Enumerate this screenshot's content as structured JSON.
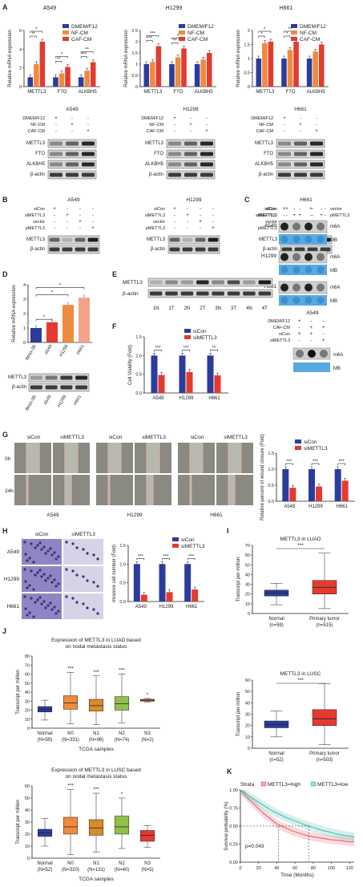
{
  "colors": {
    "blue": "#2b3c9e",
    "orange": "#f08a3c",
    "red": "#e43a2f",
    "green": "#8fc04a",
    "salmon": "#f2a38a",
    "teal": "#3cb8a8",
    "pink": "#e8566a",
    "mb": "#58a9df",
    "ink": "#222222"
  },
  "panels": {
    "A": "A",
    "B": "B",
    "C": "C",
    "D": "D",
    "E": "E",
    "F": "F",
    "G": "G",
    "H": "H",
    "I": "I",
    "J": "J",
    "K": "K"
  },
  "cell_lines": [
    "A549",
    "H1299",
    "H661"
  ],
  "genes": [
    "METTL3",
    "FTO",
    "ALKBH5"
  ],
  "bactin": "β-actin",
  "chart_data": [
    {
      "id": "A549",
      "type": "bar",
      "title": "A549",
      "ylabel": "Relative mRNA expression",
      "ylim": [
        0,
        6
      ],
      "yticks": [
        0,
        2,
        4,
        6
      ],
      "categories": [
        "METTL3",
        "FTO",
        "ALKBH5"
      ],
      "series": [
        {
          "name": "DMEM/F12",
          "values": [
            1.0,
            1.0,
            1.0
          ]
        },
        {
          "name": "NF-CM",
          "values": [
            2.4,
            1.4,
            1.7
          ]
        },
        {
          "name": "CAF-CM",
          "values": [
            4.8,
            2.1,
            2.6
          ]
        }
      ],
      "legend": [
        "DMEM/F12",
        "NF-CM",
        "CAF-CM"
      ],
      "sig_labels": [
        "**",
        "*",
        "**",
        "*",
        "***",
        "**",
        "**"
      ]
    },
    {
      "id": "H1299",
      "type": "bar",
      "title": "H1299",
      "ylabel": "Relative mRNA expression",
      "ylim": [
        0,
        2.5
      ],
      "yticks": [
        0.0,
        0.5,
        1.0,
        1.5,
        2.0,
        2.5
      ],
      "categories": [
        "METTL3",
        "FTO",
        "ALKBH5"
      ],
      "series": [
        {
          "name": "DMEM/F12",
          "values": [
            1.0,
            1.0,
            1.0
          ]
        },
        {
          "name": "NF-CM",
          "values": [
            1.1,
            1.3,
            1.2
          ]
        },
        {
          "name": "CAF-CM",
          "values": [
            1.8,
            1.7,
            1.5
          ]
        }
      ],
      "legend": [
        "DMEM/F12",
        "NF-CM",
        "CAF-CM"
      ],
      "sig_labels": [
        "***",
        "***",
        "**",
        "*"
      ]
    },
    {
      "id": "H661",
      "type": "bar",
      "title": "H661",
      "ylabel": "Relative mRNA expression",
      "ylim": [
        0,
        2.0
      ],
      "yticks": [
        0.0,
        0.5,
        1.0,
        1.5,
        2.0
      ],
      "categories": [
        "METTL3",
        "FTO",
        "ALKBH5"
      ],
      "series": [
        {
          "name": "DMEM/F12",
          "values": [
            1.0,
            1.0,
            1.0
          ]
        },
        {
          "name": "NF-CM",
          "values": [
            1.55,
            1.3,
            1.25
          ]
        },
        {
          "name": "CAF-CM",
          "values": [
            1.6,
            1.6,
            1.5
          ]
        }
      ],
      "legend": [
        "DMEM/F12",
        "NF-CM",
        "CAF-CM"
      ],
      "sig_labels": [
        "*",
        "*",
        "*",
        "**"
      ]
    },
    {
      "id": "D",
      "type": "bar",
      "ylabel": "Relative mRNA expression",
      "ylim": [
        0,
        4
      ],
      "yticks": [
        0,
        1,
        2,
        3,
        4
      ],
      "categories": [
        "Beas-2B",
        "A549",
        "H1299",
        "H661"
      ],
      "values": [
        1.0,
        1.4,
        2.6,
        3.1
      ],
      "bar_colors": [
        "#2b3c9e",
        "#e43a2f",
        "#f08a3c",
        "#f2a38a"
      ],
      "sig_labels": [
        "*",
        "*",
        "*"
      ]
    },
    {
      "id": "F",
      "type": "bar",
      "ylabel": "Cell Viability (Fold)",
      "ylim": [
        0,
        1.5
      ],
      "yticks": [
        0.0,
        0.5,
        1.0,
        1.5
      ],
      "categories": [
        "A549",
        "H1299",
        "H661"
      ],
      "series": [
        {
          "name": "siCon",
          "values": [
            1.0,
            1.0,
            1.0
          ]
        },
        {
          "name": "siMETTL3",
          "values": [
            0.48,
            0.56,
            0.47
          ]
        }
      ],
      "legend": [
        "siCon",
        "siMETTL3"
      ],
      "sig_labels": [
        "***",
        "***",
        "**"
      ]
    },
    {
      "id": "G",
      "type": "bar",
      "ylabel": "Relative percent of wound closure (Fold)",
      "ylim": [
        0,
        1.5
      ],
      "yticks": [
        0.0,
        0.5,
        1.0,
        1.5
      ],
      "categories": [
        "A549",
        "H1299",
        "H661"
      ],
      "series": [
        {
          "name": "siCon",
          "values": [
            1.0,
            1.0,
            1.0
          ]
        },
        {
          "name": "siMETTL3",
          "values": [
            0.42,
            0.46,
            0.64
          ]
        }
      ],
      "legend": [
        "siCon",
        "siMETTL3"
      ],
      "sig_labels": [
        "***",
        "***",
        "***"
      ]
    },
    {
      "id": "H",
      "type": "bar",
      "ylabel": "Invasive cell number (Fold)",
      "ylim": [
        0,
        1.5
      ],
      "yticks": [
        0.0,
        0.5,
        1.0,
        1.5
      ],
      "categories": [
        "A549",
        "H1299",
        "H661"
      ],
      "series": [
        {
          "name": "siCon",
          "values": [
            1.0,
            1.0,
            1.0
          ]
        },
        {
          "name": "siMETTL3",
          "values": [
            0.18,
            0.25,
            0.32
          ]
        }
      ],
      "legend": [
        "siCon",
        "siMETTL3"
      ],
      "sig_labels": [
        "***",
        "***",
        "***"
      ]
    },
    {
      "id": "I1",
      "type": "box",
      "title": "METTL3 in LUAD",
      "ylabel": "Transcript per million",
      "ylim": [
        0,
        70
      ],
      "yticks": [
        0,
        10,
        20,
        30,
        40,
        50,
        60,
        70
      ],
      "categories": [
        "Normal\n(n=59)",
        "Primary tumor\n(n=515)"
      ],
      "boxes": [
        {
          "min": 9,
          "q1": 18,
          "median": 21,
          "q3": 24,
          "max": 31,
          "color": "#2b3c9e"
        },
        {
          "min": 5,
          "q1": 20,
          "median": 27,
          "q3": 34,
          "max": 62,
          "color": "#e43a2f"
        }
      ],
      "sig_labels": [
        "***"
      ]
    },
    {
      "id": "I2",
      "type": "box",
      "title": "METTL3 in LUSC",
      "ylabel": "Transcript per million",
      "ylim": [
        0,
        60
      ],
      "yticks": [
        0,
        10,
        20,
        30,
        40,
        50,
        60
      ],
      "categories": [
        "Normal\n(n=52)",
        "Primary tumor\n(n=503)"
      ],
      "boxes": [
        {
          "min": 10,
          "q1": 18,
          "median": 21,
          "q3": 24,
          "max": 33,
          "color": "#2b3c9e"
        },
        {
          "min": 3,
          "q1": 20,
          "median": 26,
          "q3": 34,
          "max": 57,
          "color": "#e43a2f"
        }
      ],
      "sig_labels": [
        "***"
      ]
    },
    {
      "id": "J1",
      "type": "box",
      "title": "Expression of METTL3 in LUAD based on nodal metastasis status",
      "ylabel": "Transcript per million",
      "xlabel": "TCGA samples",
      "ylim": [
        0,
        80
      ],
      "yticks": [
        0,
        10,
        20,
        30,
        40,
        50,
        60,
        70,
        80
      ],
      "categories": [
        "Normal\n(N=59)",
        "N0\n(N=331)",
        "N1\n(N=96)",
        "N2\n(N=74)",
        "N3\n(N=2)"
      ],
      "boxes": [
        {
          "min": 9,
          "q1": 18,
          "median": 21,
          "q3": 24,
          "max": 31,
          "color": "#2b3c9e"
        },
        {
          "min": 5,
          "q1": 21,
          "median": 28,
          "q3": 36,
          "max": 62,
          "color": "#f08a3c"
        },
        {
          "min": 4,
          "q1": 19,
          "median": 25,
          "q3": 32,
          "max": 58,
          "color": "#d88a2c"
        },
        {
          "min": 6,
          "q1": 20,
          "median": 27,
          "q3": 35,
          "max": 60,
          "color": "#8fc04a"
        },
        {
          "min": 29,
          "q1": 30,
          "median": 31,
          "q3": 32,
          "max": 33,
          "color": "#e43a2f"
        }
      ],
      "sig_labels": [
        "***",
        "***",
        "***",
        "*"
      ]
    },
    {
      "id": "J2",
      "type": "box",
      "title": "Expression of METTL3 in LUSC based on nodal metastasis status",
      "ylabel": "Transcript per million",
      "xlabel": "TCGA samples",
      "ylim": [
        0,
        60
      ],
      "yticks": [
        0,
        10,
        20,
        30,
        40,
        50,
        60
      ],
      "categories": [
        "Normal\n(N=52)",
        "N0\n(N=320)",
        "N1\n(N=131)",
        "N2\n(N=40)",
        "N3\n(N=5)"
      ],
      "boxes": [
        {
          "min": 10,
          "q1": 18,
          "median": 21,
          "q3": 24,
          "max": 33,
          "color": "#2b3c9e"
        },
        {
          "min": 3,
          "q1": 20,
          "median": 26,
          "q3": 34,
          "max": 57,
          "color": "#f08a3c"
        },
        {
          "min": 5,
          "q1": 19,
          "median": 25,
          "q3": 32,
          "max": 54,
          "color": "#d88a2c"
        },
        {
          "min": 8,
          "q1": 20,
          "median": 26,
          "q3": 35,
          "max": 50,
          "color": "#8fc04a"
        },
        {
          "min": 9,
          "q1": 14,
          "median": 19,
          "q3": 23,
          "max": 27,
          "color": "#e43a2f"
        }
      ],
      "sig_labels": [
        "***",
        "***",
        "*"
      ]
    },
    {
      "id": "K",
      "type": "line",
      "xlabel": "Time (Months)",
      "ylabel": "Survival probability (%)",
      "xlim": [
        0,
        125
      ],
      "ylim": [
        0,
        1.0
      ],
      "xticks": [
        0,
        20,
        40,
        60,
        80,
        100,
        120
      ],
      "yticks": [
        0.0,
        0.25,
        0.5,
        0.75,
        1.0
      ],
      "legend_title": "Strata",
      "annotation": "p=0.043",
      "series": [
        {
          "name": "METTL3=high",
          "x": [
            0,
            5,
            10,
            15,
            20,
            25,
            30,
            35,
            40,
            45,
            50,
            60,
            70,
            80,
            90,
            100,
            110,
            120,
            125
          ],
          "y": [
            1.0,
            0.93,
            0.86,
            0.8,
            0.74,
            0.68,
            0.63,
            0.58,
            0.53,
            0.5,
            0.47,
            0.42,
            0.38,
            0.35,
            0.33,
            0.31,
            0.3,
            0.28,
            0.28
          ]
        },
        {
          "name": "METTL3=low",
          "x": [
            0,
            5,
            10,
            15,
            20,
            25,
            30,
            35,
            40,
            45,
            50,
            60,
            70,
            80,
            90,
            100,
            110,
            120,
            125
          ],
          "y": [
            1.0,
            0.96,
            0.91,
            0.87,
            0.83,
            0.79,
            0.75,
            0.71,
            0.68,
            0.65,
            0.62,
            0.57,
            0.52,
            0.48,
            0.44,
            0.41,
            0.38,
            0.36,
            0.35
          ]
        }
      ],
      "median_x": [
        42,
        75
      ]
    }
  ],
  "western": {
    "A": {
      "rows": [
        "DMEM/F12",
        "NF-CM",
        "CAF-CM"
      ],
      "signs": [
        [
          "+",
          "-",
          "-"
        ],
        [
          "-",
          "+",
          "-"
        ],
        [
          "-",
          "-",
          "+"
        ]
      ],
      "bands": [
        "METTL3",
        "FTO",
        "ALKBH5",
        "β-actin"
      ]
    },
    "B": {
      "rows": [
        "siCon",
        "siMETTL3",
        "vector",
        "pMETTL3"
      ],
      "signs": [
        [
          "+",
          "-",
          "-",
          "-"
        ],
        [
          "-",
          "+",
          "-",
          "-"
        ],
        [
          "-",
          "-",
          "+",
          "-"
        ],
        [
          "-",
          "-",
          "-",
          "+"
        ]
      ],
      "bands": [
        "METTL3",
        "β-actin"
      ]
    },
    "C": {
      "rows": [
        "siCon",
        "siMETTL3"
      ],
      "rows2": [
        "vector",
        "pMETTL3"
      ],
      "signs": [
        [
          "+",
          "-"
        ],
        [
          "-",
          "+"
        ]
      ],
      "signs2": [
        [
          "+",
          "-"
        ],
        [
          "-",
          "+"
        ]
      ],
      "lines": [
        "A549",
        "H1299",
        "H661"
      ],
      "labels": [
        "m6A",
        "MB"
      ]
    },
    "C2": {
      "title": "A549",
      "rows": [
        "DMEM/F12",
        "CAF-CM",
        "siCon",
        "siMETTL3"
      ],
      "signs": [
        [
          "+",
          "-",
          "-"
        ],
        [
          "-",
          "+",
          "+"
        ],
        [
          "+",
          "+",
          "-"
        ],
        [
          "-",
          "-",
          "+"
        ]
      ],
      "labels": [
        "m6A",
        "MB"
      ]
    },
    "D": {
      "band_labels": [
        "METTL3",
        "β-actin"
      ],
      "lanes": [
        "Beas-2B",
        "A549",
        "H1299",
        "H661"
      ]
    },
    "E": {
      "band_labels": [
        "METTL3",
        "β-actin"
      ],
      "lanes": [
        "1N",
        "1T",
        "2N",
        "2T",
        "3N",
        "3T",
        "4N",
        "4T"
      ]
    }
  },
  "wound": {
    "rows": [
      "0h",
      "24h"
    ],
    "cols": [
      "siCon",
      "siMETTL3"
    ]
  },
  "invasion": {
    "cols": [
      "siCon",
      "siMETTL3"
    ]
  }
}
